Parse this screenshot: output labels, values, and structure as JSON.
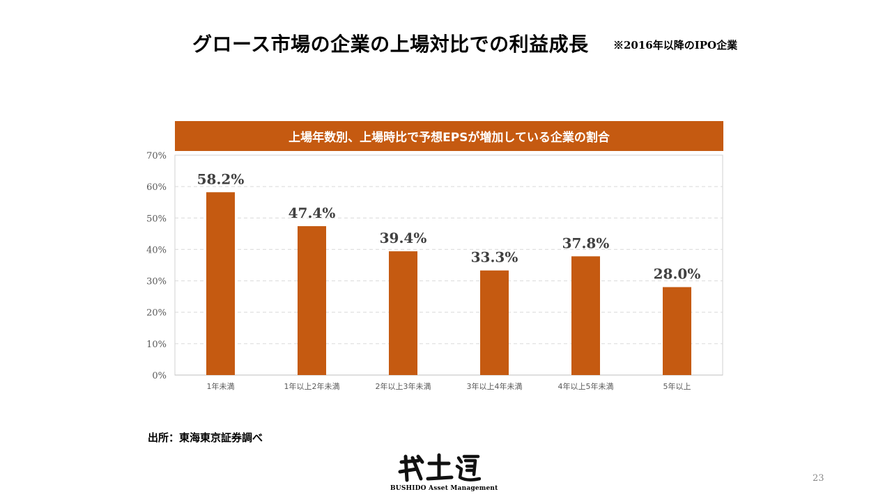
{
  "page": {
    "title": "グロース市場の企業の上場対比での利益成長",
    "note": "※2016年以降のIPO企業",
    "source": "出所：東海東京証券調べ",
    "page_number": "23",
    "logo_caption": "BUSHIDO Asset Management",
    "logo_glyphs": "武士道"
  },
  "colors": {
    "accent": "#c55a11",
    "grid": "#d9d9d9",
    "axis_text": "#595959",
    "label_text": "#404040"
  },
  "chart_data": {
    "type": "bar",
    "title": "上場年数別、上場時比で予想EPSが増加している企業の割合",
    "categories": [
      "1年未満",
      "1年以上2年未満",
      "2年以上3年未満",
      "3年以上4年未満",
      "4年以上5年未満",
      "5年以上"
    ],
    "values": [
      58.2,
      47.4,
      39.4,
      33.3,
      37.8,
      28.0
    ],
    "data_labels": [
      "58.2%",
      "47.4%",
      "39.4%",
      "33.3%",
      "37.8%",
      "28.0%"
    ],
    "ylim": [
      0,
      70
    ],
    "y_ticks": [
      0,
      10,
      20,
      30,
      40,
      50,
      60,
      70
    ],
    "y_tick_labels": [
      "0%",
      "10%",
      "20%",
      "30%",
      "40%",
      "50%",
      "60%",
      "70%"
    ],
    "grid": true,
    "xlabel": "",
    "ylabel": ""
  }
}
